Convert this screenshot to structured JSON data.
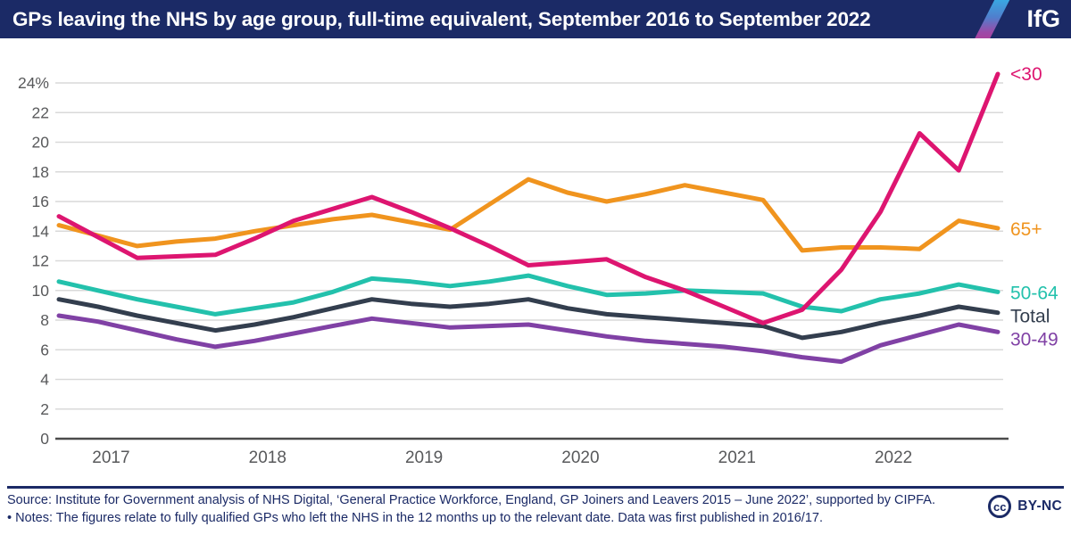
{
  "header": {
    "title": "GPs leaving the NHS by age group, full-time equivalent, September 2016 to September 2022",
    "logo_text": "IfG"
  },
  "footer": {
    "source": "Source: Institute for Government analysis of NHS Digital, ‘General Practice Workforce, England, GP Joiners and Leavers 2015 – June 2022’, supported by CIPFA.",
    "notes": "• Notes: The figures relate to fully qualified GPs who left the NHS in the 12 months up to the relevant date. Data was first published in 2016/17.",
    "cc_label": "cc",
    "license": "BY-NC"
  },
  "colors": {
    "navy": "#1b2a66",
    "grid": "#d9d9d9",
    "axis": "#4b4b4b",
    "tick_text": "#58595b"
  },
  "chart_data": {
    "type": "line",
    "title": "GPs leaving the NHS by age group, full-time equivalent, September 2016 to September 2022",
    "x_frequency": "quarterly",
    "x": [
      "Sep 2016",
      "Dec 2016",
      "Mar 2017",
      "Jun 2017",
      "Sep 2017",
      "Dec 2017",
      "Mar 2018",
      "Jun 2018",
      "Sep 2018",
      "Dec 2018",
      "Mar 2019",
      "Jun 2019",
      "Sep 2019",
      "Dec 2019",
      "Mar 2020",
      "Jun 2020",
      "Sep 2020",
      "Dec 2020",
      "Mar 2021",
      "Jun 2021",
      "Sep 2021",
      "Dec 2021",
      "Mar 2022",
      "Jun 2022",
      "Sep 2022"
    ],
    "year_tick_labels": [
      "2017",
      "2018",
      "2019",
      "2020",
      "2021",
      "2022"
    ],
    "ylim": [
      0,
      24
    ],
    "y_step": 2,
    "y_top_tick_label": "24%",
    "grid": true,
    "legend_position": "right-end-labels",
    "series": [
      {
        "name": "<30",
        "color": "#dd1570",
        "values": [
          15.0,
          13.6,
          12.2,
          12.3,
          12.4,
          13.5,
          14.7,
          15.5,
          16.3,
          15.3,
          14.2,
          13.0,
          11.7,
          11.9,
          12.1,
          10.9,
          10.0,
          8.9,
          7.8,
          8.7,
          11.4,
          15.3,
          20.6,
          18.1,
          24.6
        ]
      },
      {
        "name": "65+",
        "color": "#f0941e",
        "values": [
          14.4,
          13.7,
          13.0,
          13.3,
          13.5,
          14.0,
          14.4,
          14.8,
          15.1,
          14.6,
          14.1,
          15.8,
          17.5,
          16.6,
          16.0,
          16.5,
          17.1,
          16.6,
          16.1,
          12.7,
          12.9,
          12.9,
          12.8,
          14.7,
          14.2
        ]
      },
      {
        "name": "50-64",
        "color": "#23c1ac",
        "values": [
          10.6,
          10.0,
          9.4,
          8.9,
          8.4,
          8.8,
          9.2,
          9.9,
          10.8,
          10.6,
          10.3,
          10.6,
          11.0,
          10.3,
          9.7,
          9.8,
          10.0,
          9.9,
          9.8,
          8.9,
          8.6,
          9.4,
          9.8,
          10.4,
          9.9
        ]
      },
      {
        "name": "Total",
        "color": "#333e4e",
        "values": [
          9.4,
          8.9,
          8.3,
          7.8,
          7.3,
          7.7,
          8.2,
          8.8,
          9.4,
          9.1,
          8.9,
          9.1,
          9.4,
          8.8,
          8.4,
          8.2,
          8.0,
          7.8,
          7.6,
          6.8,
          7.2,
          7.8,
          8.3,
          8.9,
          8.5
        ]
      },
      {
        "name": "30-49",
        "color": "#8041a5",
        "values": [
          8.3,
          7.9,
          7.3,
          6.7,
          6.2,
          6.6,
          7.1,
          7.6,
          8.1,
          7.8,
          7.5,
          7.6,
          7.7,
          7.3,
          6.9,
          6.6,
          6.4,
          6.2,
          5.9,
          5.5,
          5.2,
          6.3,
          7.0,
          7.7,
          7.2
        ]
      }
    ]
  }
}
